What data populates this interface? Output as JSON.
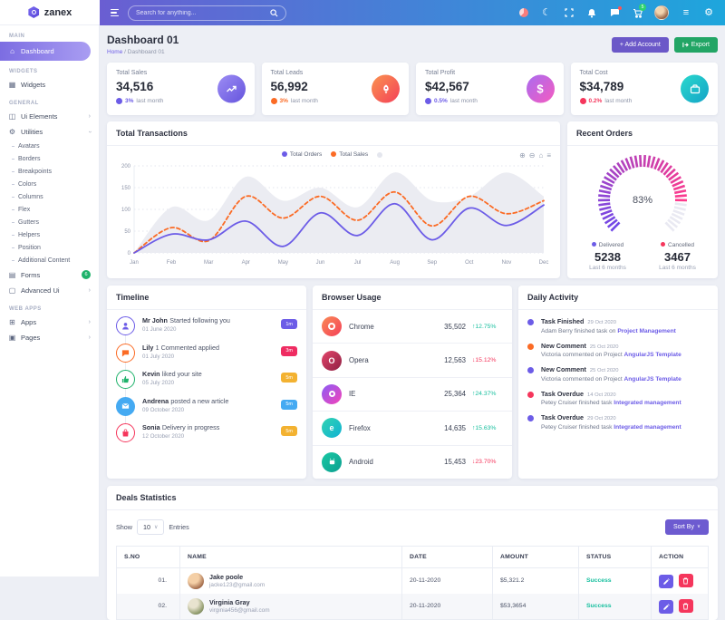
{
  "brand": {
    "name": "zanex"
  },
  "topbar": {
    "search_placeholder": "Search for anything...",
    "cart_badge": "5",
    "gradient": [
      "#6a5ed2",
      "#1ea6dc"
    ]
  },
  "sidebar": {
    "sections": {
      "main": "MAIN",
      "widgets": "WIDGETS",
      "general": "GENERAL",
      "webapps": "WEB APPS"
    },
    "dashboard": "Dashboard",
    "widgets": "Widgets",
    "ui_elements": "Ui Elements",
    "utilities": "Utilities",
    "utilities_children": [
      "Avatars",
      "Borders",
      "Breakpoints",
      "Colors",
      "Columns",
      "Flex",
      "Gutters",
      "Helpers",
      "Position",
      "Additional Content"
    ],
    "forms": "Forms",
    "forms_badge": "6",
    "advanced_ui": "Advanced Ui",
    "apps": "Apps",
    "pages": "Pages"
  },
  "page": {
    "title": "Dashboard 01",
    "breadcrumb_home": "Home",
    "breadcrumb_sep": "/",
    "breadcrumb_current": "Dashboard 01",
    "add_account": "+ Add Account",
    "export": "Export"
  },
  "stats": [
    {
      "label": "Total Sales",
      "value": "34,516",
      "change": "3%",
      "note": "last month",
      "accent": "#6c5ce7"
    },
    {
      "label": "Total Leads",
      "value": "56,992",
      "change": "3%",
      "note": "last month",
      "accent": "#fb6b25"
    },
    {
      "label": "Total Profit",
      "value": "$42,567",
      "change": "0.5%",
      "note": "last month",
      "accent": "#6c5ce7"
    },
    {
      "label": "Total Cost",
      "value": "$34,789",
      "change": "0.2%",
      "note": "last month",
      "accent": "#f5365c"
    }
  ],
  "chart_data": [
    {
      "type": "line",
      "title": "Total Transactions",
      "categories": [
        "Jan",
        "Feb",
        "Mar",
        "Apr",
        "May",
        "Jun",
        "Jul",
        "Aug",
        "Sep",
        "Oct",
        "Nov",
        "Dec"
      ],
      "series": [
        {
          "name": "background",
          "type": "area",
          "color": "#ebecf2",
          "values": [
            0,
            105,
            75,
            175,
            120,
            150,
            105,
            185,
            120,
            130,
            185,
            130
          ]
        },
        {
          "name": "Total Sales",
          "type": "line",
          "style": "dashed",
          "color": "#fb6b25",
          "values": [
            0,
            58,
            28,
            130,
            80,
            130,
            75,
            140,
            62,
            130,
            90,
            120
          ]
        },
        {
          "name": "Total Orders",
          "type": "line",
          "style": "solid",
          "color": "#6c5ce7",
          "values": [
            0,
            43,
            30,
            73,
            15,
            92,
            40,
            113,
            30,
            103,
            63,
            110
          ]
        }
      ],
      "legend": [
        {
          "label": "Total Orders",
          "color": "#6c5ce7"
        },
        {
          "label": "Total Sales",
          "color": "#fb6b25"
        }
      ],
      "ylim": [
        0,
        200
      ],
      "yticks": [
        0,
        50,
        100,
        150,
        200
      ],
      "grid": "dashed",
      "legend_position": "top"
    },
    {
      "type": "radial-gauge",
      "title": "Recent Orders",
      "value_pct": 83,
      "center_label": "83%",
      "sweep_deg": 270,
      "color_start": "#7048e8",
      "color_end": "#fd3a8c",
      "track_color": "#e9e9f2",
      "legend": [
        {
          "label": "Delivered",
          "value": "5238",
          "note": "Last 6 months",
          "color": "#6c5ce7"
        },
        {
          "label": "Cancelled",
          "value": "3467",
          "note": "Last 6 months",
          "color": "#f5365c"
        }
      ]
    }
  ],
  "transactions": {
    "title": "Total Transactions"
  },
  "recent_orders": {
    "title": "Recent Orders"
  },
  "timeline": {
    "title": "Timeline",
    "items": [
      {
        "name": "Mr John",
        "text": "Started following you",
        "date": "01 June 2020",
        "badge": "1m",
        "color": "#6c5ce7",
        "badge_color": "#6c5ce7"
      },
      {
        "name": "Lily",
        "text": "1 Commented applied",
        "date": "01 July 2020",
        "badge": "3m",
        "color": "#fb6b25",
        "badge_color": "#ef2c62"
      },
      {
        "name": "Kevin",
        "text": "liked your site",
        "date": "05 July 2020",
        "badge": "5m",
        "color": "#1fb26b",
        "badge_color": "#f3b231"
      },
      {
        "name": "Andrena",
        "text": "posted a new article",
        "date": "09 October 2020",
        "badge": "5m",
        "color": "#45aaf2",
        "badge_color": "#45aaf2"
      },
      {
        "name": "Sonia",
        "text": "Delivery in progress",
        "date": "12 October 2020",
        "badge": "5m",
        "color": "#f5365c",
        "badge_color": "#f3b231"
      }
    ]
  },
  "browser_usage": {
    "title": "Browser Usage",
    "rows": [
      {
        "name": "Chrome",
        "value": "35,502",
        "arrow": "↑",
        "pct": "12.75%",
        "dir": "up"
      },
      {
        "name": "Opera",
        "value": "12,563",
        "arrow": "↓",
        "pct": "15.12%",
        "dir": "down"
      },
      {
        "name": "IE",
        "value": "25,364",
        "arrow": "↑",
        "pct": "24.37%",
        "dir": "up"
      },
      {
        "name": "Firefox",
        "value": "14,635",
        "arrow": "↑",
        "pct": "15.63%",
        "dir": "up"
      },
      {
        "name": "Android",
        "value": "15,453",
        "arrow": "↓",
        "pct": "23.70%",
        "dir": "down"
      }
    ]
  },
  "daily_activity": {
    "title": "Daily Activity",
    "items": [
      {
        "title": "Task Finished",
        "date": "29 Oct 2020",
        "text": "Adam Berry finished task on",
        "link": "Project Management",
        "color": "#6c5ce7"
      },
      {
        "title": "New Comment",
        "date": "25 Oct 2020",
        "text": "Victoria commented on Project",
        "link": "AngularJS Template",
        "color": "#fb6b25"
      },
      {
        "title": "New Comment",
        "date": "25 Oct 2020",
        "text": "Victoria commented on Project",
        "link": "AngularJS Template",
        "color": "#6c5ce7"
      },
      {
        "title": "Task Overdue",
        "date": "14 Oct 2020",
        "text": "Petey Cruiser finished task",
        "link": "Integrated management",
        "color": "#f5365c"
      },
      {
        "title": "Task Overdue",
        "date": "29 Oct 2020",
        "text": "Petey Cruiser finished task",
        "link": "Integrated management",
        "color": "#6c5ce7"
      }
    ]
  },
  "deals": {
    "title": "Deals Statistics",
    "show_label": "Show",
    "show_value": "10",
    "entries_label": "Entries",
    "sort_by": "Sort By",
    "headers": [
      "S.NO",
      "NAME",
      "DATE",
      "AMOUNT",
      "STATUS",
      "ACTION"
    ],
    "rows": [
      {
        "sno": "01.",
        "name": "Jake poole",
        "email": "jacke123@gmail.com",
        "date": "20-11-2020",
        "amount": "$5,321.2",
        "status": "Success"
      },
      {
        "sno": "02.",
        "name": "Virginia Gray",
        "email": "virginia456@gmail.com",
        "date": "20-11-2020",
        "amount": "$53,3654",
        "status": "Success"
      }
    ]
  }
}
